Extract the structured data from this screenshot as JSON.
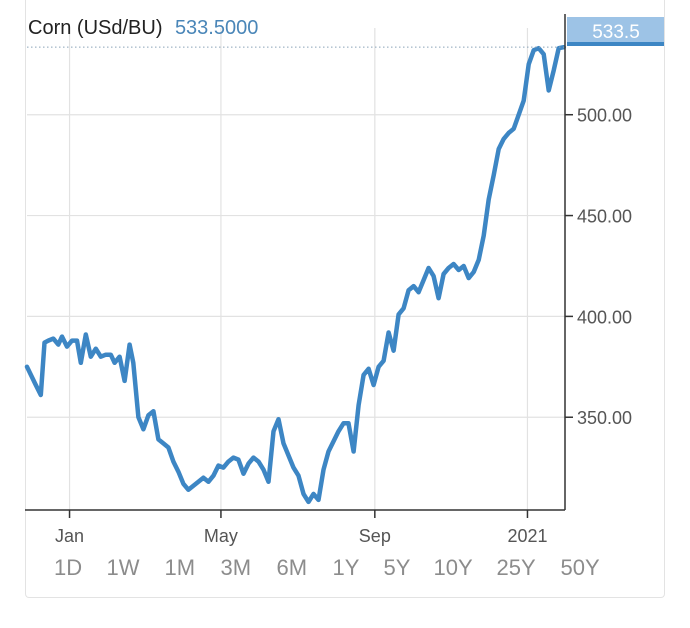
{
  "header": {
    "instrument": "Corn (USd/BU)",
    "price": "533.5000"
  },
  "price_tag": "533.5",
  "range_buttons": [
    "1D",
    "1W",
    "1M",
    "3M",
    "6M",
    "1Y",
    "5Y",
    "10Y",
    "25Y",
    "50Y"
  ],
  "colors": {
    "line": "#3d86c4",
    "price_tag_bg": "#9dc3e6",
    "grid": "#e2e2e2",
    "axis": "#333333"
  },
  "chart_data": {
    "type": "line",
    "title": "Corn (USd/BU)",
    "xlabel": "",
    "ylabel": "",
    "ylim": [
      304,
      543
    ],
    "xlim": [
      "2019-11-28",
      "2021-01-31"
    ],
    "yticks": [
      350,
      400,
      450,
      500
    ],
    "ytick_labels": [
      "350.00",
      "400.00",
      "450.00",
      "500.00"
    ],
    "xticks": [
      "2020-01-01",
      "2020-05-01",
      "2020-09-01",
      "2021-01-01"
    ],
    "xtick_labels": [
      "Jan",
      "May",
      "Sep",
      "2021"
    ],
    "grid": true,
    "last_value": 533.5,
    "series": [
      {
        "x": [
          "2019-11-28",
          "2019-12-05",
          "2019-12-09",
          "2019-12-12",
          "2019-12-15",
          "2019-12-19",
          "2019-12-23",
          "2019-12-26",
          "2019-12-30",
          "2020-01-03",
          "2020-01-07",
          "2020-01-10",
          "2020-01-14",
          "2020-01-18",
          "2020-01-22",
          "2020-01-26",
          "2020-01-30",
          "2020-02-03",
          "2020-02-06",
          "2020-02-10",
          "2020-02-14",
          "2020-02-18",
          "2020-02-21",
          "2020-02-25",
          "2020-02-29",
          "2020-03-04",
          "2020-03-08",
          "2020-03-12",
          "2020-03-16",
          "2020-03-20",
          "2020-03-24",
          "2020-03-28",
          "2020-04-01",
          "2020-04-05",
          "2020-04-09",
          "2020-04-13",
          "2020-04-17",
          "2020-04-21",
          "2020-04-25",
          "2020-04-29",
          "2020-05-03",
          "2020-05-07",
          "2020-05-11",
          "2020-05-15",
          "2020-05-19",
          "2020-05-23",
          "2020-05-27",
          "2020-05-31",
          "2020-06-04",
          "2020-06-08",
          "2020-06-12",
          "2020-06-16",
          "2020-06-20",
          "2020-06-24",
          "2020-06-28",
          "2020-07-02",
          "2020-07-06",
          "2020-07-10",
          "2020-07-14",
          "2020-07-18",
          "2020-07-22",
          "2020-07-26",
          "2020-07-30",
          "2020-08-03",
          "2020-08-07",
          "2020-08-11",
          "2020-08-15",
          "2020-08-19",
          "2020-08-23",
          "2020-08-27",
          "2020-08-31",
          "2020-09-04",
          "2020-09-08",
          "2020-09-12",
          "2020-09-16",
          "2020-09-20",
          "2020-09-24",
          "2020-09-28",
          "2020-10-02",
          "2020-10-06",
          "2020-10-10",
          "2020-10-14",
          "2020-10-18",
          "2020-10-22",
          "2020-10-26",
          "2020-10-30",
          "2020-11-03",
          "2020-11-07",
          "2020-11-11",
          "2020-11-15",
          "2020-11-19",
          "2020-11-23",
          "2020-11-27",
          "2020-12-01",
          "2020-12-05",
          "2020-12-09",
          "2020-12-13",
          "2020-12-17",
          "2020-12-21",
          "2020-12-25",
          "2020-12-29",
          "2021-01-02",
          "2021-01-06",
          "2021-01-10",
          "2021-01-14",
          "2021-01-18",
          "2021-01-22",
          "2021-01-26",
          "2021-01-30"
        ],
        "values": [
          375,
          366,
          361,
          387,
          388,
          389,
          386,
          390,
          385,
          388,
          388,
          377,
          391,
          380,
          384,
          380,
          381,
          381,
          377,
          380,
          368,
          386,
          377,
          350,
          344,
          351,
          353,
          339,
          337,
          335,
          328,
          323,
          317,
          314,
          316,
          318,
          320,
          318,
          321,
          326,
          325,
          328,
          330,
          329,
          322,
          327,
          330,
          328,
          324,
          318,
          343,
          349,
          337,
          331,
          325,
          321,
          312,
          308,
          312,
          309,
          324,
          333,
          338,
          343,
          347,
          347,
          333,
          356,
          371,
          374,
          366,
          375,
          378,
          392,
          383,
          401,
          404,
          413,
          415,
          412,
          418,
          424,
          420,
          409,
          421,
          424,
          426,
          423,
          425,
          419,
          422,
          428,
          440,
          458,
          470,
          483,
          488,
          491,
          493,
          500,
          507,
          525,
          532,
          533,
          530,
          512,
          522,
          533,
          533.5
        ]
      }
    ]
  }
}
